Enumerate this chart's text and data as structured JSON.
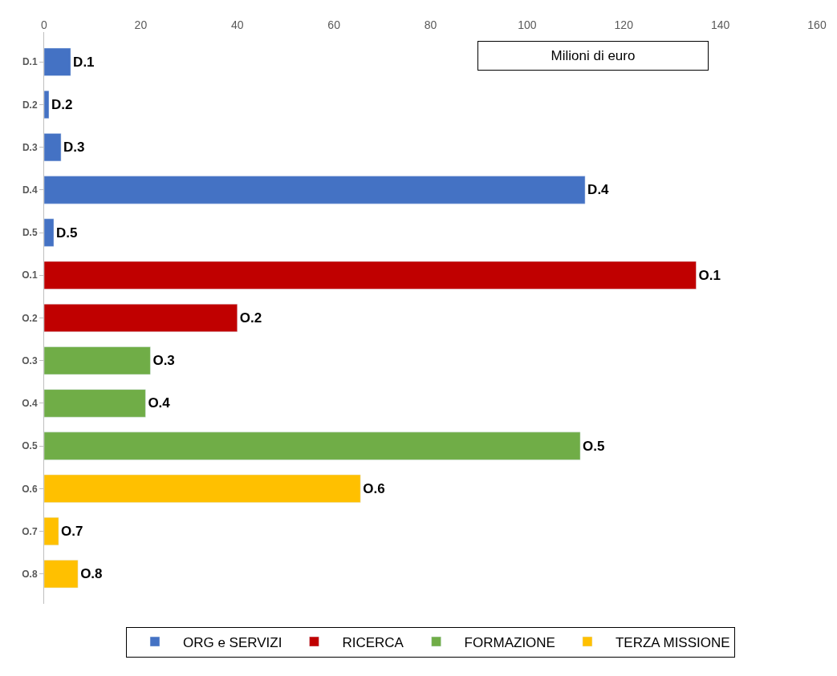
{
  "chart_data": {
    "type": "bar",
    "orientation": "horizontal",
    "categories": [
      "D.1",
      "D.2",
      "D.3",
      "D.4",
      "D.5",
      "O.1",
      "O.2",
      "O.3",
      "O.4",
      "O.5",
      "O.6",
      "O.7",
      "O.8"
    ],
    "series": [
      {
        "name": "ORG e SERVIZI",
        "color": "#4472c4",
        "values": [
          5.5,
          1,
          3.5,
          112,
          2,
          null,
          null,
          null,
          null,
          null,
          null,
          null,
          null
        ],
        "value_labels": [
          "D.1",
          "D.2",
          "D.3",
          "D.4",
          "D.5",
          null,
          null,
          null,
          null,
          null,
          null,
          null,
          null
        ]
      },
      {
        "name": "RICERCA",
        "color": "#c00000",
        "values": [
          null,
          null,
          null,
          null,
          null,
          135,
          40,
          null,
          null,
          null,
          null,
          null,
          null
        ],
        "value_labels": [
          null,
          null,
          null,
          null,
          null,
          "O.1",
          "O.2",
          null,
          null,
          null,
          null,
          null,
          null
        ]
      },
      {
        "name": "FORMAZIONE",
        "color": "#70ad47",
        "values": [
          null,
          null,
          null,
          null,
          null,
          null,
          null,
          22,
          21,
          111,
          null,
          null,
          null
        ],
        "value_labels": [
          null,
          null,
          null,
          null,
          null,
          null,
          null,
          "O.3",
          "O.4",
          "O.5",
          null,
          null,
          null
        ]
      },
      {
        "name": "TERZA MISSIONE",
        "color": "#ffc000",
        "values": [
          null,
          null,
          null,
          null,
          null,
          null,
          null,
          null,
          null,
          null,
          65.5,
          3,
          7
        ],
        "value_labels": [
          null,
          null,
          null,
          null,
          null,
          null,
          null,
          null,
          null,
          null,
          "O.6",
          "O.7",
          "O.8"
        ]
      }
    ],
    "xlim": [
      0,
      160
    ],
    "xticks": [
      0,
      20,
      40,
      60,
      80,
      100,
      120,
      140,
      160
    ],
    "annotations": [
      "Milioni di euro"
    ],
    "legend": "bottom"
  }
}
